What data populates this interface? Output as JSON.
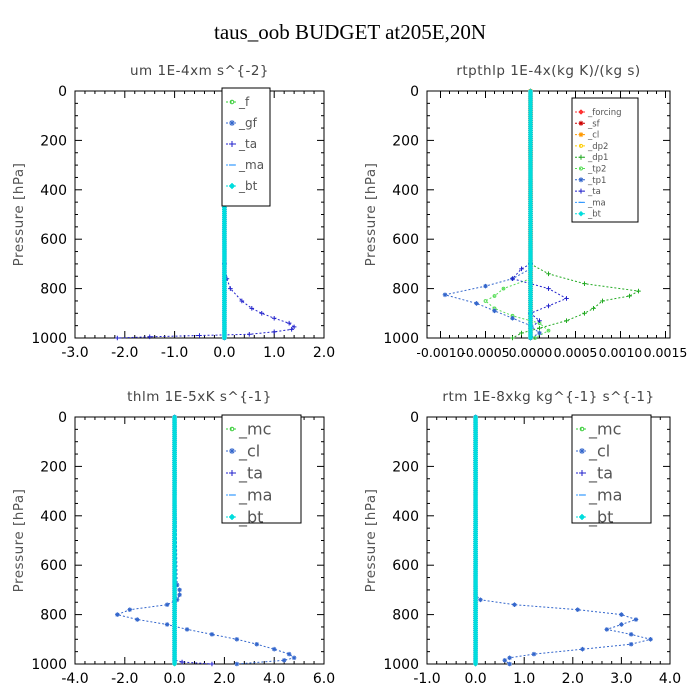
{
  "page": {
    "title": "taus_oob  BUDGET at205E,20N"
  },
  "chart_data": [
    {
      "type": "line",
      "id": "um",
      "title": "um  1E-4xm s^{-2}",
      "ylabel": "Pressure [hPa]",
      "xlim": [
        -3.0,
        2.0
      ],
      "xticks": [
        "-3.0",
        "-2.0",
        "-1.0",
        "0.0",
        "1.0",
        "2.0"
      ],
      "xtick_values": [
        -3,
        -2,
        -1,
        0,
        1,
        2
      ],
      "ylim": [
        0,
        1000
      ],
      "yticks": [
        "0",
        "200",
        "400",
        "600",
        "800",
        "1000"
      ],
      "ytick_values": [
        0,
        200,
        400,
        600,
        800,
        1000
      ],
      "legend": "top-right",
      "grid": false,
      "series": [
        {
          "name": "_f",
          "color": "#33cc33",
          "marker": "o",
          "dense_profile": [
            [
              0,
              0
            ],
            [
              1000,
              0
            ]
          ]
        },
        {
          "name": "_gf",
          "color": "#3366cc",
          "marker": "*",
          "dense_profile": [
            [
              0,
              0
            ],
            [
              1000,
              0
            ]
          ]
        },
        {
          "name": "_ta",
          "color": "#2222cc",
          "marker": "+",
          "points": [
            [
              0,
              0
            ],
            [
              700,
              0
            ],
            [
              760,
              0.05
            ],
            [
              800,
              0.12
            ],
            [
              850,
              0.35
            ],
            [
              880,
              0.55
            ],
            [
              900,
              0.75
            ],
            [
              920,
              1.0
            ],
            [
              940,
              1.3
            ],
            [
              955,
              1.4
            ],
            [
              965,
              1.35
            ],
            [
              975,
              1.0
            ],
            [
              985,
              0.5
            ],
            [
              990,
              -0.5
            ],
            [
              995,
              -1.5
            ],
            [
              1000,
              -2.15
            ]
          ]
        },
        {
          "name": "_ma",
          "color": "#3399ff",
          "marker": "-",
          "dense_profile": [
            [
              0,
              0
            ],
            [
              1000,
              0
            ]
          ]
        },
        {
          "name": "_bt",
          "color": "#00dddd",
          "marker": "diamond",
          "dense_profile": [
            [
              0,
              0
            ],
            [
              1000,
              0
            ]
          ]
        }
      ]
    },
    {
      "type": "line",
      "id": "rtpthlp",
      "title": "rtpthlp  1E-4x(kg K)/(kg s)",
      "ylabel": "Pressure [hPa]",
      "xlim": [
        -0.00115,
        0.00155
      ],
      "xticks": [
        "-0.0010",
        "-0.0005",
        "0.0000",
        "0.0005",
        "0.0010",
        "0.0015"
      ],
      "xtick_values": [
        -0.001,
        -0.0005,
        0,
        0.0005,
        0.001,
        0.0015
      ],
      "ylim": [
        0,
        1000
      ],
      "yticks": [
        "0",
        "200",
        "400",
        "600",
        "800",
        "1000"
      ],
      "ytick_values": [
        0,
        200,
        400,
        600,
        800,
        1000
      ],
      "legend": "top-right",
      "grid": false,
      "series": [
        {
          "name": "_forcing",
          "color": "#ff3333",
          "marker": "diamond",
          "dense_profile": [
            [
              0,
              0
            ],
            [
              1000,
              0
            ]
          ]
        },
        {
          "name": "_sf",
          "color": "#cc0000",
          "marker": "*",
          "dense_profile": [
            [
              0,
              0
            ],
            [
              1000,
              0
            ]
          ]
        },
        {
          "name": "_cl",
          "color": "#ff9900",
          "marker": "*",
          "dense_profile": [
            [
              0,
              0
            ],
            [
              1000,
              0
            ]
          ]
        },
        {
          "name": "_dp2",
          "color": "#ffcc00",
          "marker": "o",
          "dense_profile": [
            [
              0,
              0
            ],
            [
              1000,
              0
            ]
          ]
        },
        {
          "name": "_dp1",
          "color": "#22aa22",
          "marker": "+",
          "points": [
            [
              700,
              0
            ],
            [
              740,
              0.0002
            ],
            [
              780,
              0.0006
            ],
            [
              810,
              0.0012
            ],
            [
              830,
              0.0011
            ],
            [
              850,
              0.0008
            ],
            [
              880,
              0.0007
            ],
            [
              900,
              0.0006
            ],
            [
              930,
              0.0004
            ],
            [
              960,
              0.0001
            ],
            [
              980,
              -0.0001
            ],
            [
              1000,
              -0.0002
            ]
          ]
        },
        {
          "name": "_tp2",
          "color": "#55dd55",
          "marker": "o",
          "points": [
            [
              760,
              0
            ],
            [
              800,
              -0.0003
            ],
            [
              830,
              -0.0004
            ],
            [
              850,
              -0.0005
            ],
            [
              880,
              -0.0004
            ],
            [
              910,
              -0.0002
            ],
            [
              940,
              0.0001
            ],
            [
              970,
              0.0002
            ],
            [
              1000,
              5e-05
            ]
          ]
        },
        {
          "name": "_tp1",
          "color": "#3366cc",
          "marker": "*",
          "points": [
            [
              720,
              0
            ],
            [
              760,
              -0.0002
            ],
            [
              790,
              -0.0005
            ],
            [
              825,
              -0.00095
            ],
            [
              860,
              -0.0006
            ],
            [
              890,
              -0.0004
            ],
            [
              920,
              -0.0002
            ],
            [
              950,
              0
            ],
            [
              980,
              0.0001
            ],
            [
              1000,
              0
            ]
          ]
        },
        {
          "name": "_ta",
          "color": "#2222cc",
          "marker": "+",
          "points": [
            [
              700,
              0
            ],
            [
              720,
              -0.0001
            ],
            [
              760,
              -0.0002
            ],
            [
              800,
              0.0002
            ],
            [
              840,
              0.0004
            ],
            [
              870,
              0.0002
            ],
            [
              900,
              0
            ],
            [
              930,
              0.0001
            ],
            [
              960,
              0
            ],
            [
              1000,
              0
            ]
          ]
        },
        {
          "name": "_ma",
          "color": "#3399ff",
          "marker": "-",
          "dense_profile": [
            [
              0,
              0
            ],
            [
              1000,
              0
            ]
          ]
        },
        {
          "name": "_bt",
          "color": "#00dddd",
          "marker": "diamond",
          "dense_profile": [
            [
              0,
              0
            ],
            [
              1000,
              0
            ]
          ]
        }
      ]
    },
    {
      "type": "line",
      "id": "thlm",
      "title": "thlm  1E-5xK  s^{-1}",
      "ylabel": "Pressure [hPa]",
      "xlim": [
        -4.0,
        6.0
      ],
      "xticks": [
        "-4.0",
        "-2.0",
        "0.0",
        "2.0",
        "4.0",
        "6.0"
      ],
      "xtick_values": [
        -4,
        -2,
        0,
        2,
        4,
        6
      ],
      "ylim": [
        0,
        1000
      ],
      "yticks": [
        "0",
        "200",
        "400",
        "600",
        "800",
        "1000"
      ],
      "ytick_values": [
        0,
        200,
        400,
        600,
        800,
        1000
      ],
      "legend": "top-right",
      "grid": false,
      "series": [
        {
          "name": "_mc",
          "color": "#33cc33",
          "marker": "o",
          "dense_profile": [
            [
              0,
              0
            ],
            [
              1000,
              0
            ]
          ]
        },
        {
          "name": "_cl",
          "color": "#3366cc",
          "marker": "*",
          "points": [
            [
              0,
              0
            ],
            [
              680,
              0.1
            ],
            [
              700,
              0.2
            ],
            [
              720,
              0.2
            ],
            [
              740,
              0.1
            ],
            [
              760,
              -0.3
            ],
            [
              780,
              -1.8
            ],
            [
              800,
              -2.3
            ],
            [
              820,
              -1.5
            ],
            [
              840,
              -0.3
            ],
            [
              860,
              0.5
            ],
            [
              880,
              1.5
            ],
            [
              900,
              2.5
            ],
            [
              920,
              3.3
            ],
            [
              940,
              4.0
            ],
            [
              960,
              4.6
            ],
            [
              975,
              4.8
            ],
            [
              985,
              4.4
            ],
            [
              1000,
              2.5
            ]
          ]
        },
        {
          "name": "_ta",
          "color": "#2222cc",
          "marker": "+",
          "dense_profile": [
            [
              0,
              0
            ],
            [
              990,
              0
            ],
            [
              1000,
              1.5
            ]
          ]
        },
        {
          "name": "_ma",
          "color": "#3399ff",
          "marker": "-",
          "dense_profile": [
            [
              0,
              0
            ],
            [
              1000,
              0
            ]
          ]
        },
        {
          "name": "_bt",
          "color": "#00dddd",
          "marker": "diamond",
          "dense_profile": [
            [
              0,
              0
            ],
            [
              1000,
              0
            ]
          ]
        }
      ]
    },
    {
      "type": "line",
      "id": "rtm",
      "title": "rtm  1E-8xkg kg^{-1} s^{-1}",
      "ylabel": "Pressure [hPa]",
      "xlim": [
        -1.0,
        4.0
      ],
      "xticks": [
        "-1.0",
        "0.0",
        "1.0",
        "2.0",
        "3.0",
        "4.0"
      ],
      "xtick_values": [
        -1,
        0,
        1,
        2,
        3,
        4
      ],
      "ylim": [
        0,
        1000
      ],
      "yticks": [
        "0",
        "200",
        "400",
        "600",
        "800",
        "1000"
      ],
      "ytick_values": [
        0,
        200,
        400,
        600,
        800,
        1000
      ],
      "legend": "top-right",
      "grid": false,
      "series": [
        {
          "name": "_mc",
          "color": "#33cc33",
          "marker": "o",
          "dense_profile": [
            [
              0,
              0
            ],
            [
              1000,
              0
            ]
          ]
        },
        {
          "name": "_cl",
          "color": "#3366cc",
          "marker": "*",
          "points": [
            [
              0,
              0
            ],
            [
              720,
              0
            ],
            [
              740,
              0.1
            ],
            [
              760,
              0.8
            ],
            [
              780,
              2.1
            ],
            [
              800,
              3.0
            ],
            [
              820,
              3.3
            ],
            [
              840,
              3.0
            ],
            [
              860,
              2.7
            ],
            [
              880,
              3.2
            ],
            [
              900,
              3.6
            ],
            [
              920,
              3.2
            ],
            [
              940,
              2.2
            ],
            [
              960,
              1.2
            ],
            [
              975,
              0.7
            ],
            [
              985,
              0.6
            ],
            [
              1000,
              0.7
            ]
          ]
        },
        {
          "name": "_ta",
          "color": "#2222cc",
          "marker": "+",
          "dense_profile": [
            [
              0,
              0
            ],
            [
              1000,
              0
            ]
          ]
        },
        {
          "name": "_ma",
          "color": "#3399ff",
          "marker": "-",
          "dense_profile": [
            [
              0,
              0
            ],
            [
              1000,
              0
            ]
          ]
        },
        {
          "name": "_bt",
          "color": "#00dddd",
          "marker": "diamond",
          "dense_profile": [
            [
              0,
              0
            ],
            [
              1000,
              0
            ]
          ]
        }
      ]
    }
  ]
}
